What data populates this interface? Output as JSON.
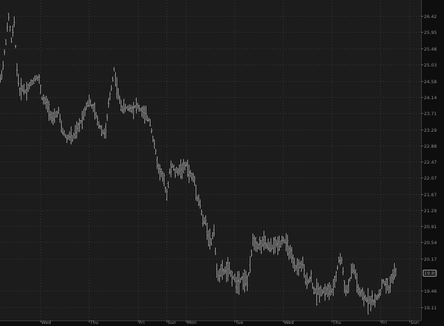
{
  "chart_data": {
    "type": "ohlc",
    "title": "",
    "xlabel": "",
    "ylabel": "",
    "y_scale": "log",
    "ylim": [
      18.95,
      27.0
    ],
    "grid": true,
    "colors": {
      "background": "#1c1c1c",
      "axis_background": "#0e0e0e",
      "bars": "#9a9a9a",
      "grid": "#3a3a3a",
      "text": "#8c8c8c",
      "last_price_badge": "#d9d9d9"
    },
    "y_ticks": [
      "26.42",
      "25.95",
      "25.48",
      "25.03",
      "24.58",
      "24.14",
      "23.71",
      "23.29",
      "22.88",
      "22.47",
      "22.07",
      "21.67",
      "21.29",
      "20.91",
      "20.54",
      "20.17",
      "19.46",
      "19.11"
    ],
    "x_ticks": [
      "Wed",
      "Thu",
      "Fri",
      "Sun",
      "Mon",
      "Tue",
      "Wed",
      "Thu",
      "Fri",
      "Sun"
    ],
    "last_price": "19.85",
    "series": [
      {
        "points_bar_index_price": [
          [
            0,
            24.61
          ],
          [
            1,
            25.0
          ],
          [
            2,
            25.7
          ],
          [
            3,
            26.38
          ],
          [
            4,
            25.7
          ],
          [
            5,
            26.2
          ],
          [
            6,
            24.9
          ],
          [
            7,
            24.3
          ],
          [
            8,
            24.4
          ],
          [
            9,
            24.3
          ],
          [
            10,
            24.4
          ],
          [
            11,
            24.5
          ],
          [
            13,
            24.7
          ],
          [
            14,
            24.6
          ],
          [
            15,
            24.12
          ],
          [
            17,
            23.93
          ],
          [
            19,
            23.5
          ],
          [
            20,
            23.67
          ],
          [
            21,
            23.76
          ],
          [
            22,
            23.31
          ],
          [
            24,
            23.05
          ],
          [
            25,
            23.13
          ],
          [
            26,
            23.05
          ],
          [
            28,
            23.31
          ],
          [
            30,
            23.67
          ],
          [
            31,
            23.93
          ],
          [
            32,
            24.03
          ],
          [
            34,
            23.76
          ],
          [
            35,
            23.5
          ],
          [
            37,
            23.22
          ],
          [
            38,
            23.22
          ],
          [
            39,
            23.93
          ],
          [
            40,
            24.4
          ],
          [
            41,
            24.9
          ],
          [
            42,
            24.4
          ],
          [
            43,
            24.03
          ],
          [
            44,
            23.85
          ],
          [
            48,
            23.85
          ],
          [
            49,
            23.93
          ],
          [
            51,
            23.76
          ],
          [
            52,
            23.67
          ],
          [
            54,
            23.5
          ],
          [
            55,
            23.05
          ],
          [
            56,
            22.7
          ],
          [
            57,
            22.29
          ],
          [
            58,
            22.2
          ],
          [
            59,
            21.95
          ],
          [
            60,
            21.67
          ],
          [
            61,
            22.2
          ],
          [
            62,
            22.37
          ],
          [
            63,
            22.2
          ],
          [
            65,
            22.29
          ],
          [
            66,
            22.29
          ],
          [
            67,
            22.4
          ],
          [
            68,
            22.2
          ],
          [
            70,
            22.0
          ],
          [
            71,
            21.6
          ],
          [
            72,
            21.43
          ],
          [
            73,
            21.02
          ],
          [
            74,
            21.02
          ],
          [
            75,
            20.7
          ],
          [
            76,
            20.54
          ],
          [
            77,
            20.86
          ],
          [
            78,
            19.83
          ],
          [
            81,
            19.9
          ],
          [
            82,
            19.93
          ],
          [
            85,
            19.66
          ],
          [
            87,
            19.74
          ],
          [
            89,
            19.66
          ],
          [
            90,
            19.96
          ],
          [
            91,
            20.62
          ],
          [
            93,
            20.46
          ],
          [
            95,
            20.54
          ],
          [
            97,
            20.41
          ],
          [
            101,
            20.54
          ],
          [
            102,
            20.62
          ],
          [
            104,
            20.38
          ],
          [
            106,
            19.96
          ],
          [
            109,
            20.04
          ],
          [
            110,
            19.66
          ],
          [
            112,
            19.74
          ],
          [
            113,
            19.46
          ],
          [
            118,
            19.46
          ],
          [
            120,
            19.46
          ],
          [
            122,
            20.14
          ],
          [
            123,
            20.14
          ],
          [
            124,
            19.58
          ],
          [
            125,
            19.46
          ],
          [
            127,
            19.96
          ],
          [
            128,
            19.83
          ],
          [
            129,
            19.46
          ],
          [
            131,
            19.3
          ],
          [
            135,
            19.23
          ],
          [
            137,
            19.46
          ],
          [
            138,
            19.66
          ],
          [
            140,
            19.51
          ],
          [
            141,
            19.74
          ],
          [
            142,
            19.85
          ]
        ]
      }
    ]
  }
}
